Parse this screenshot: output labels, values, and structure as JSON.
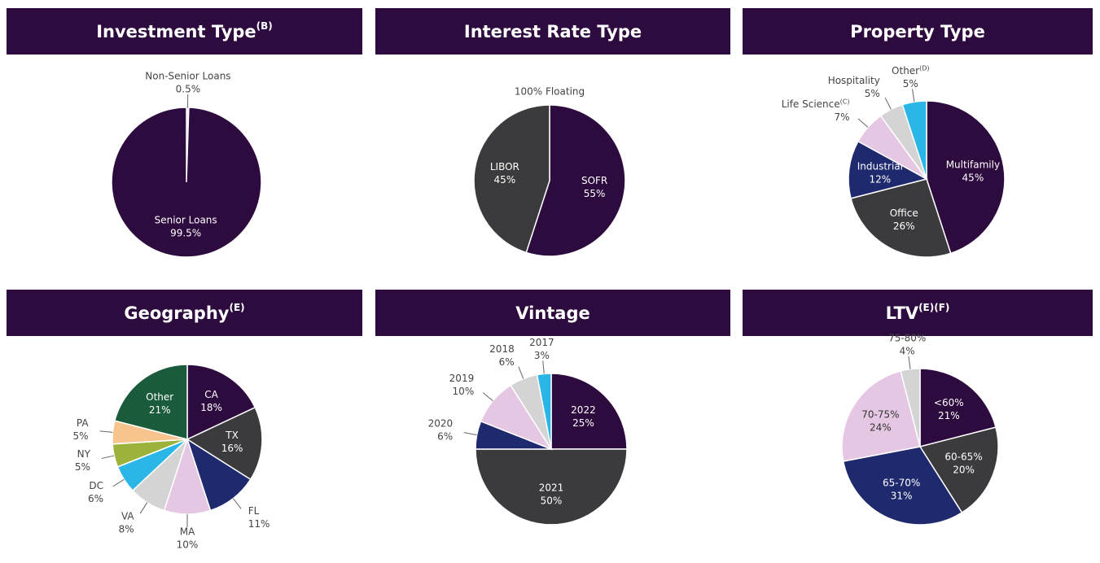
{
  "chart_data": [
    {
      "type": "pie",
      "title": "Investment Type",
      "title_sup": "(B)",
      "categories": [
        "Non-Senior Loans",
        "Senior Loans"
      ],
      "values": [
        0.5,
        99.5
      ],
      "value_labels": [
        "0.5%",
        "99.5%"
      ],
      "colors": [
        "#ffffff",
        "#2e0b3f"
      ]
    },
    {
      "type": "pie",
      "title": "Interest Rate Type",
      "annotation": "100% Floating",
      "categories": [
        "SOFR",
        "LIBOR"
      ],
      "values": [
        55,
        45
      ],
      "value_labels": [
        "55%",
        "45%"
      ],
      "colors": [
        "#2e0b3f",
        "#3b3b3d"
      ]
    },
    {
      "type": "pie",
      "title": "Property Type",
      "categories": [
        "Multifamily",
        "Office",
        "Industrial",
        "Life Science",
        "Hospitality",
        "Other"
      ],
      "category_notes": {
        "3": "(C)",
        "5": "(D)"
      },
      "values": [
        45,
        26,
        12,
        7,
        5,
        5
      ],
      "value_labels": [
        "45%",
        "26%",
        "12%",
        "7%",
        "5%",
        "5%"
      ],
      "colors": [
        "#2e0b3f",
        "#3b3b3d",
        "#1f2a6e",
        "#e6c7e3",
        "#d4d4d4",
        "#2bb6e8"
      ]
    },
    {
      "type": "pie",
      "title": "Geography",
      "title_sup": "(E)",
      "categories": [
        "CA",
        "TX",
        "FL",
        "MA",
        "VA",
        "DC",
        "NY",
        "PA",
        "Other"
      ],
      "values": [
        18,
        16,
        11,
        10,
        8,
        6,
        5,
        5,
        21
      ],
      "value_labels": [
        "18%",
        "16%",
        "11%",
        "10%",
        "8%",
        "6%",
        "5%",
        "5%",
        "21%"
      ],
      "colors": [
        "#2e0b3f",
        "#3b3b3d",
        "#1f2a6e",
        "#e6c7e3",
        "#d4d4d4",
        "#2bb6e8",
        "#9cb33b",
        "#f6c48c",
        "#1a5b3b"
      ]
    },
    {
      "type": "pie",
      "title": "Vintage",
      "categories": [
        "2022",
        "2021",
        "2020",
        "2019",
        "2018",
        "2017"
      ],
      "values": [
        25,
        50,
        6,
        10,
        6,
        3
      ],
      "value_labels": [
        "25%",
        "50%",
        "6%",
        "10%",
        "6%",
        "3%"
      ],
      "colors": [
        "#2e0b3f",
        "#3b3b3d",
        "#1f2a6e",
        "#e6c7e3",
        "#d4d4d4",
        "#2bb6e8"
      ]
    },
    {
      "type": "pie",
      "title": "LTV",
      "title_sup": "(E)(F)",
      "categories": [
        "<60%",
        "60-65%",
        "65-70%",
        "70-75%",
        "75-80%"
      ],
      "values": [
        21,
        20,
        31,
        24,
        4
      ],
      "value_labels": [
        "21%",
        "20%",
        "31%",
        "24%",
        "4%"
      ],
      "colors": [
        "#2e0b3f",
        "#3b3b3d",
        "#1f2a6e",
        "#e6c7e3",
        "#d4d4d4"
      ]
    }
  ]
}
